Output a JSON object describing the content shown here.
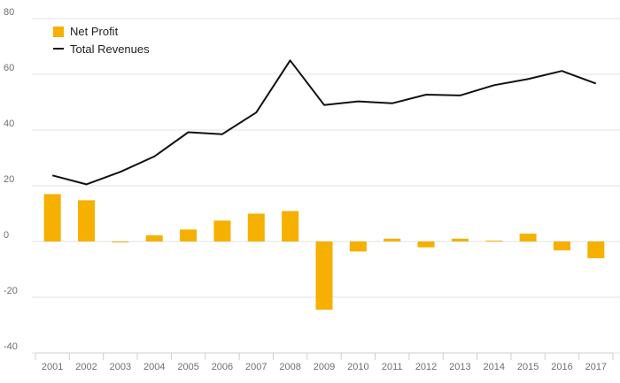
{
  "chart_data": {
    "type": "bar",
    "categories": [
      "2001",
      "2002",
      "2003",
      "2004",
      "2005",
      "2006",
      "2007",
      "2008",
      "2009",
      "2010",
      "2011",
      "2012",
      "2013",
      "2014",
      "2015",
      "2016",
      "2017"
    ],
    "series": [
      {
        "name": "Net Profit",
        "type": "bar",
        "color": "#f5b000",
        "values": [
          17,
          14.8,
          -0.3,
          2.2,
          4.3,
          7.5,
          10,
          10.9,
          -24.5,
          -3.6,
          1,
          -2.1,
          1,
          0.3,
          2.8,
          -3.2,
          -6
        ]
      },
      {
        "name": "Total Revenues",
        "type": "line",
        "color": "#111111",
        "values": [
          23.7,
          20.5,
          25,
          30.5,
          39.2,
          38.5,
          46.3,
          65,
          49,
          50.3,
          49.6,
          52.7,
          52.4,
          56.1,
          58.3,
          61.2,
          56.7
        ]
      }
    ],
    "title": "",
    "xlabel": "",
    "ylabel": "",
    "ylim": [
      -40,
      80
    ],
    "yticks": [
      "80",
      "60",
      "40",
      "20",
      "0",
      "-20",
      "-40"
    ],
    "grid": true,
    "legend": "top-left"
  }
}
